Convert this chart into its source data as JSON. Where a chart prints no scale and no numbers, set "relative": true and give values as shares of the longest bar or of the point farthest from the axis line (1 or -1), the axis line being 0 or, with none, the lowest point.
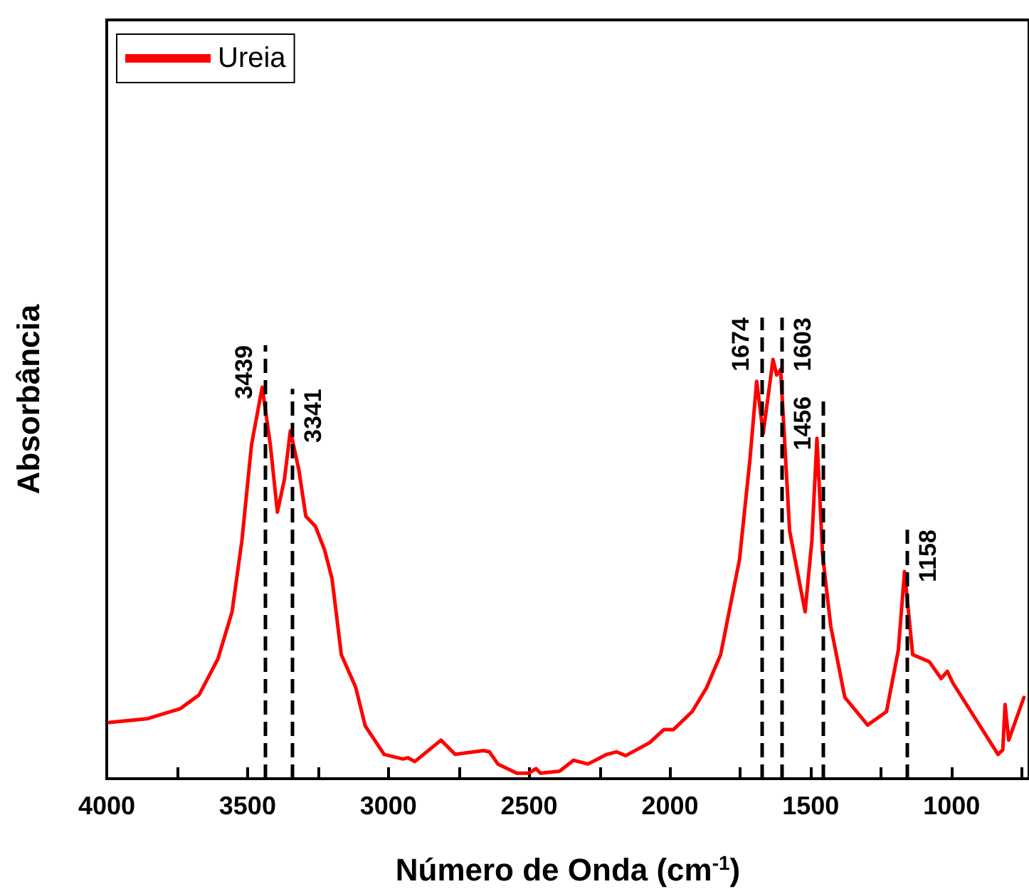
{
  "chart_data": {
    "type": "line",
    "xlabel": "Número de Onda (cm$^{-1}$)",
    "ylabel": "Absorbância",
    "relative": true,
    "legend": "top left",
    "grid": false,
    "marker": "none",
    "line_style": "solid",
    "xlim": [
      4000,
      725
    ],
    "xticks": [
      4000,
      {
        "value": 3750,
        "label": null
      },
      3500,
      {
        "value": 3250,
        "label": null
      },
      3000,
      {
        "value": 2750,
        "label": null
      },
      2500,
      {
        "value": 2250,
        "label": null
      },
      2000,
      {
        "value": 1750,
        "label": null
      },
      1500,
      {
        "value": 1250,
        "label": null
      },
      1000,
      {
        "value": 750,
        "label": null
      }
    ],
    "x": [
      3991,
      3857,
      3739,
      3672,
      3605,
      3555,
      3520,
      3486,
      3448,
      3419,
      3394,
      3369,
      3348,
      3318,
      3293,
      3259,
      3226,
      3200,
      3167,
      3116,
      3082,
      3015,
      2948,
      2931,
      2906,
      2813,
      2763,
      2662,
      2641,
      2611,
      2544,
      2502,
      2476,
      2460,
      2392,
      2342,
      2291,
      2224,
      2190,
      2157,
      2072,
      2022,
      1988,
      1921,
      1870,
      1820,
      1753,
      1716,
      1692,
      1669,
      1634,
      1621,
      1607,
      1575,
      1520,
      1496,
      1478,
      1458,
      1429,
      1379,
      1298,
      1231,
      1189,
      1167,
      1138,
      1079,
      1037,
      1015,
      995,
      835,
      818,
      810,
      797,
      743
    ],
    "series": [
      {
        "name": "Ureia",
        "color": "#ff0000",
        "values": [
          0.134,
          0.143,
          0.167,
          0.2,
          0.286,
          0.398,
          0.568,
          0.796,
          0.934,
          0.796,
          0.636,
          0.714,
          0.83,
          0.738,
          0.626,
          0.602,
          0.545,
          0.477,
          0.296,
          0.218,
          0.126,
          0.058,
          0.047,
          0.05,
          0.041,
          0.092,
          0.058,
          0.067,
          0.064,
          0.035,
          0.013,
          0.013,
          0.024,
          0.013,
          0.018,
          0.044,
          0.035,
          0.058,
          0.064,
          0.055,
          0.086,
          0.117,
          0.117,
          0.16,
          0.217,
          0.296,
          0.523,
          0.761,
          0.948,
          0.823,
          1.0,
          0.963,
          0.976,
          0.591,
          0.398,
          0.568,
          0.812,
          0.534,
          0.364,
          0.194,
          0.128,
          0.16,
          0.307,
          0.494,
          0.296,
          0.279,
          0.239,
          0.256,
          0.228,
          0.058,
          0.069,
          0.177,
          0.092,
          0.194
        ]
      }
    ],
    "ref_lines": [
      {
        "axis": "x",
        "value": 3439,
        "label": "3439",
        "color": "#000000",
        "line_style": "dashed"
      },
      {
        "axis": "x",
        "value": 3341,
        "label": "3341",
        "color": "#000000",
        "line_style": "dashed"
      },
      {
        "axis": "x",
        "value": 1674,
        "label": "1674",
        "color": "#000000",
        "line_style": "dashed"
      },
      {
        "axis": "x",
        "value": 1603,
        "label": "1603",
        "color": "#000000",
        "line_style": "dashed"
      },
      {
        "axis": "x",
        "value": 1456,
        "label": "1456",
        "color": "#000000",
        "line_style": "dashed"
      },
      {
        "axis": "x",
        "value": 1158,
        "label": "1158",
        "color": "#000000",
        "line_style": "dashed"
      }
    ]
  }
}
